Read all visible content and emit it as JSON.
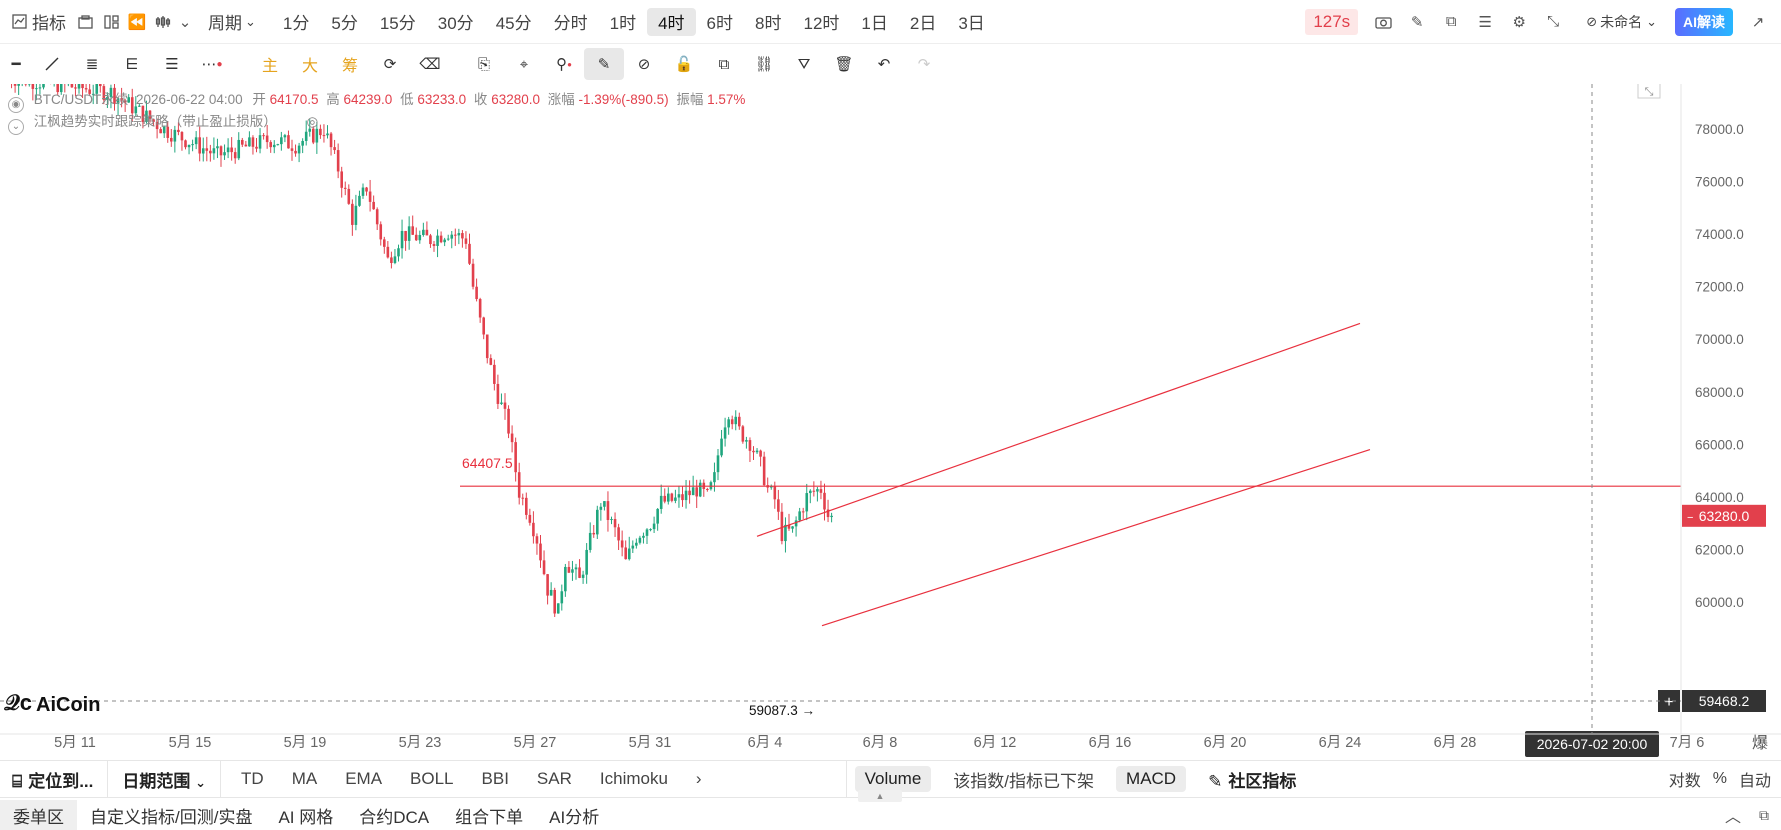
{
  "top_bar": {
    "indicator_label": "指标",
    "period_label": "周期",
    "periods": [
      "1分",
      "5分",
      "15分",
      "30分",
      "45分",
      "分时",
      "1时",
      "4时",
      "6时",
      "8时",
      "12时",
      "1日",
      "2日",
      "3日"
    ],
    "active_period": "4时",
    "countdown": "127s",
    "account_label": "未命名",
    "ai_label": "AI解读"
  },
  "draw_bar": {
    "indicators": [
      "主",
      "大",
      "筹"
    ]
  },
  "legend": {
    "symbol": "BTC/USDT永续",
    "time": "2026-06-22 04:00",
    "open_label": "开",
    "open": "64170.5",
    "high_label": "高",
    "high": "64239.0",
    "low_label": "低",
    "low": "63233.0",
    "close_label": "收",
    "close": "63280.0",
    "change_label": "涨幅",
    "change": "-1.39%(-890.5)",
    "amplitude_label": "振幅",
    "amplitude": "1.57%",
    "strategy": "江枫趋势实时跟踪策略（带止盈止损版）"
  },
  "chart_data": {
    "type": "candlestick",
    "symbol": "BTC/USDT永续",
    "y_ticks": [
      "78000.0",
      "76000.0",
      "74000.0",
      "72000.0",
      "70000.0",
      "68000.0",
      "66000.0",
      "64000.0",
      "62000.0",
      "60000.0"
    ],
    "ylim": [
      59400,
      80300
    ],
    "x_ticks": [
      "5月 11",
      "5月 15",
      "5月 19",
      "5月 23",
      "5月 27",
      "5月 31",
      "6月 4",
      "6月 8",
      "6月 12",
      "6月 16",
      "6月 20",
      "6月 24",
      "6月 28",
      "7月 6"
    ],
    "crosshair_date": "2026-07-02 20:00",
    "axis_suffix": "爆",
    "current_price": "63280.0",
    "crosshair_price": "59468.2",
    "low_annotation": "59087.3 →",
    "horizontal_line": {
      "label": "64407.5",
      "value": 64407.5
    },
    "channel_lines": [
      {
        "from": [
          "6月 4",
          62500
        ],
        "to": [
          "6月 25",
          70600
        ]
      },
      {
        "from": [
          "6月 5",
          59100
        ],
        "to": [
          "6月 25",
          65800
        ]
      }
    ],
    "candle_path": [
      [
        0,
        80000
      ],
      [
        30,
        79400
      ],
      [
        45,
        78000
      ],
      [
        60,
        77000
      ],
      [
        75,
        77600
      ],
      [
        82,
        77400
      ],
      [
        90,
        78000
      ],
      [
        94,
        76500
      ],
      [
        98,
        74600
      ],
      [
        102,
        75800
      ],
      [
        108,
        73000
      ],
      [
        112,
        74000
      ],
      [
        120,
        73800
      ],
      [
        125,
        74100
      ],
      [
        130,
        73800
      ],
      [
        132,
        72000
      ],
      [
        135,
        70000
      ],
      [
        138,
        68300
      ],
      [
        142,
        66600
      ],
      [
        145,
        64200
      ],
      [
        148,
        63300
      ],
      [
        150,
        62400
      ],
      [
        153,
        60500
      ],
      [
        156,
        59600
      ],
      [
        158,
        61600
      ],
      [
        162,
        60800
      ],
      [
        165,
        62300
      ],
      [
        168,
        63800
      ],
      [
        172,
        62700
      ],
      [
        175,
        61500
      ],
      [
        178,
        62500
      ],
      [
        182,
        63000
      ],
      [
        185,
        63800
      ],
      [
        190,
        63900
      ],
      [
        195,
        64300
      ],
      [
        198,
        64000
      ],
      [
        200,
        64700
      ],
      [
        202,
        66500
      ],
      [
        204,
        67300
      ],
      [
        207,
        66500
      ],
      [
        210,
        66100
      ],
      [
        213,
        65200
      ],
      [
        215,
        64300
      ],
      [
        217,
        63900
      ],
      [
        219,
        62600
      ],
      [
        222,
        62700
      ],
      [
        224,
        63400
      ],
      [
        226,
        64000
      ],
      [
        228,
        64200
      ],
      [
        230,
        64300
      ],
      [
        232,
        63300
      ]
    ]
  },
  "indicator_bar": {
    "locate_label": "定位到...",
    "date_range_label": "日期范围",
    "indicators": [
      "TD",
      "MA",
      "EMA",
      "BOLL",
      "BBI",
      "SAR",
      "Ichimoku"
    ],
    "volume_label": "Volume",
    "removed_notice": "该指数/指标已下架",
    "macd_label": "MACD",
    "community_label": "社区指标",
    "scale_options": [
      "对数",
      "%",
      "自动"
    ]
  },
  "tabs": [
    "委单区",
    "自定义指标/回测/实盘",
    "AI 网格",
    "合约DCA",
    "组合下单",
    "AI分析"
  ],
  "colors": {
    "up": "#20a67e",
    "down": "#e2404c",
    "drawing": "#e8303e",
    "accent": "#3b6cff"
  }
}
